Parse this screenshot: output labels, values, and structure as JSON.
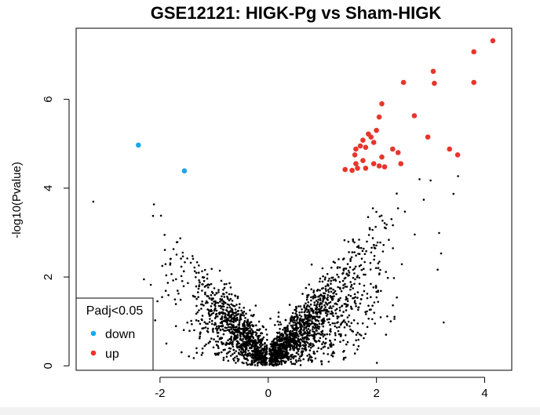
{
  "chart_data": {
    "type": "scatter",
    "title": "GSE12121: HIGK-Pg vs Sham-HIGK",
    "xlabel": "",
    "ylabel": "-log10(Pvalue)",
    "xlim": [
      -3.55,
      4.5
    ],
    "ylim": [
      -0.1,
      7.6
    ],
    "x_ticks": [
      -2,
      0,
      2,
      4
    ],
    "y_ticks": [
      0,
      2,
      4,
      6
    ],
    "x_tick_labels": [
      "-2",
      "0",
      "2",
      "4"
    ],
    "y_tick_labels": [
      "0",
      "2",
      "4",
      "6"
    ],
    "background_points": {
      "color": "#000000",
      "description": "non-significant genes forming a V shape from (0,0)",
      "count": 2500
    },
    "series": [
      {
        "name": "down",
        "color": "#1aa7e8",
        "points": [
          [
            -2.4,
            4.97
          ],
          [
            -1.55,
            4.39
          ]
        ]
      },
      {
        "name": "up",
        "color": "#e8352b",
        "points": [
          [
            4.15,
            7.32
          ],
          [
            3.8,
            7.07
          ],
          [
            3.05,
            6.63
          ],
          [
            3.07,
            6.36
          ],
          [
            3.8,
            6.38
          ],
          [
            2.5,
            6.38
          ],
          [
            2.1,
            5.9
          ],
          [
            2.7,
            5.63
          ],
          [
            2.05,
            5.6
          ],
          [
            2.0,
            5.3
          ],
          [
            1.85,
            5.22
          ],
          [
            1.9,
            5.15
          ],
          [
            1.75,
            5.08
          ],
          [
            1.95,
            5.03
          ],
          [
            1.7,
            4.95
          ],
          [
            1.8,
            4.92
          ],
          [
            1.62,
            4.88
          ],
          [
            2.3,
            4.88
          ],
          [
            2.4,
            4.8
          ],
          [
            2.95,
            5.15
          ],
          [
            3.35,
            4.88
          ],
          [
            3.5,
            4.75
          ],
          [
            1.6,
            4.75
          ],
          [
            2.1,
            4.7
          ],
          [
            1.75,
            4.62
          ],
          [
            1.95,
            4.55
          ],
          [
            1.62,
            4.55
          ],
          [
            2.45,
            4.55
          ],
          [
            2.05,
            4.5
          ],
          [
            2.15,
            4.48
          ],
          [
            1.65,
            4.45
          ],
          [
            1.42,
            4.42
          ],
          [
            1.55,
            4.4
          ],
          [
            1.8,
            4.45
          ]
        ]
      }
    ],
    "legend": {
      "title": "Padj<0.05",
      "entries": [
        "down",
        "up"
      ],
      "position": "bottom-left"
    }
  }
}
